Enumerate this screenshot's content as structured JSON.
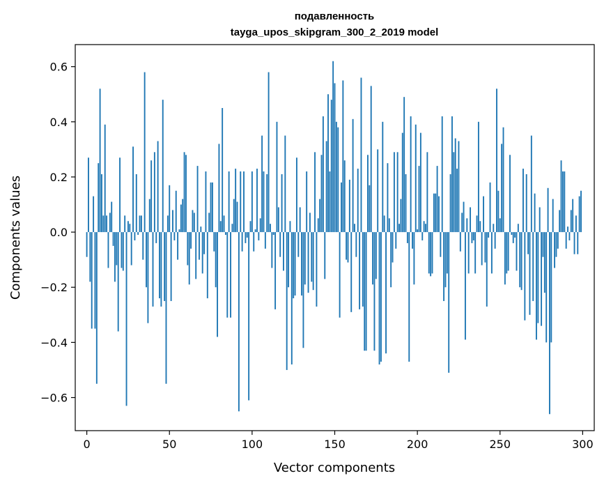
{
  "chart_data": {
    "type": "bar",
    "title": "подавленность",
    "subtitle": "tayga_upos_skipgram_300_2_2019 model",
    "xlabel": "Vector components",
    "ylabel": "Components values",
    "xlim": [
      -7,
      307
    ],
    "ylim": [
      -0.72,
      0.68
    ],
    "xticks": [
      0,
      50,
      100,
      150,
      200,
      250,
      300
    ],
    "xtick_labels": [
      "0",
      "50",
      "100",
      "150",
      "200",
      "250",
      "300"
    ],
    "yticks": [
      -0.6,
      -0.4,
      -0.2,
      0.0,
      0.2,
      0.4,
      0.6
    ],
    "ytick_labels": [
      "−0.6",
      "−0.4",
      "−0.2",
      "0.0",
      "0.2",
      "0.4",
      "0.6"
    ],
    "color": "#1f77b4",
    "values": [
      -0.09,
      0.27,
      -0.18,
      -0.35,
      0.13,
      -0.35,
      -0.55,
      0.25,
      0.52,
      0.21,
      0.06,
      0.39,
      0.06,
      -0.13,
      0.07,
      0.11,
      -0.05,
      -0.18,
      -0.12,
      -0.36,
      0.27,
      -0.13,
      -0.14,
      0.06,
      -0.63,
      0.04,
      0.03,
      -0.12,
      0.31,
      -0.03,
      0.21,
      -0.01,
      0.06,
      0.06,
      -0.1,
      0.58,
      -0.2,
      -0.33,
      0.12,
      0.26,
      -0.27,
      0.29,
      -0.04,
      0.33,
      -0.24,
      -0.27,
      0.48,
      -0.25,
      -0.55,
      0.06,
      0.17,
      -0.25,
      0.08,
      -0.03,
      0.15,
      -0.1,
      0.01,
      0.1,
      0.12,
      0.29,
      0.28,
      -0.12,
      -0.19,
      -0.06,
      0.08,
      0.07,
      -0.17,
      0.24,
      -0.1,
      0.02,
      -0.15,
      -0.08,
      0.22,
      -0.24,
      0.07,
      0.18,
      0.18,
      -0.07,
      -0.2,
      -0.38,
      0.32,
      0.04,
      0.45,
      0.06,
      -0.01,
      -0.31,
      0.22,
      -0.31,
      0.03,
      0.12,
      0.23,
      0.11,
      -0.65,
      0.22,
      -0.07,
      0.22,
      -0.04,
      -0.02,
      -0.61,
      0.04,
      0.22,
      -0.07,
      0.01,
      0.23,
      -0.03,
      0.05,
      0.35,
      0.22,
      -0.06,
      0.21,
      0.58,
      0.03,
      -0.13,
      -0.01,
      -0.28,
      0.4,
      0.09,
      -0.09,
      0.21,
      -0.14,
      0.35,
      -0.5,
      -0.2,
      0.04,
      -0.48,
      -0.24,
      -0.23,
      0.27,
      -0.09,
      0.09,
      -0.23,
      -0.42,
      -0.19,
      0.22,
      -0.22,
      0.07,
      -0.18,
      -0.21,
      0.29,
      -0.27,
      0.05,
      0.12,
      0.28,
      0.42,
      -0.17,
      0.33,
      0.5,
      0.22,
      0.48,
      0.62,
      0.54,
      0.4,
      0.38,
      -0.31,
      0.18,
      0.55,
      0.26,
      -0.1,
      -0.11,
      0.19,
      -0.29,
      0.41,
      0.03,
      -0.09,
      0.23,
      -0.28,
      0.56,
      -0.27,
      -0.43,
      -0.43,
      0.28,
      0.17,
      0.53,
      -0.19,
      -0.43,
      -0.17,
      0.3,
      -0.48,
      -0.47,
      0.4,
      0.06,
      -0.44,
      0.25,
      0.05,
      -0.2,
      -0.11,
      0.29,
      -0.06,
      0.29,
      0.03,
      0.12,
      0.36,
      0.49,
      0.21,
      -0.04,
      -0.47,
      0.42,
      -0.06,
      -0.19,
      0.39,
      0.01,
      0.24,
      0.36,
      -0.03,
      0.04,
      0.03,
      0.29,
      -0.15,
      -0.16,
      -0.15,
      0.14,
      0.14,
      0.24,
      0.13,
      -0.09,
      0.42,
      -0.25,
      -0.2,
      -0.15,
      -0.51,
      0.21,
      0.42,
      0.29,
      0.34,
      0.23,
      0.33,
      -0.07,
      0.07,
      0.11,
      -0.39,
      0.05,
      -0.15,
      0.09,
      -0.04,
      -0.03,
      -0.15,
      0.06,
      0.4,
      0.04,
      -0.12,
      0.13,
      -0.11,
      -0.27,
      -0.02,
      0.18,
      -0.15,
      0.03,
      -0.06,
      0.52,
      0.15,
      0.05,
      0.32,
      0.38,
      -0.19,
      -0.15,
      -0.14,
      0.28,
      -0.01,
      -0.04,
      -0.02,
      -0.14,
      0.03,
      -0.2,
      -0.21,
      0.23,
      -0.32,
      0.21,
      -0.08,
      -0.3,
      0.35,
      -0.25,
      0.14,
      -0.39,
      -0.33,
      0.09,
      -0.34,
      -0.09,
      -0.22,
      -0.4,
      0.16,
      -0.66,
      -0.4,
      0.12,
      -0.13,
      -0.09,
      -0.06,
      0.08,
      0.26,
      0.22,
      0.22,
      -0.06,
      0.02,
      -0.03,
      0.08,
      0.12,
      -0.08,
      0.06,
      -0.08,
      0.13,
      0.15
    ]
  }
}
